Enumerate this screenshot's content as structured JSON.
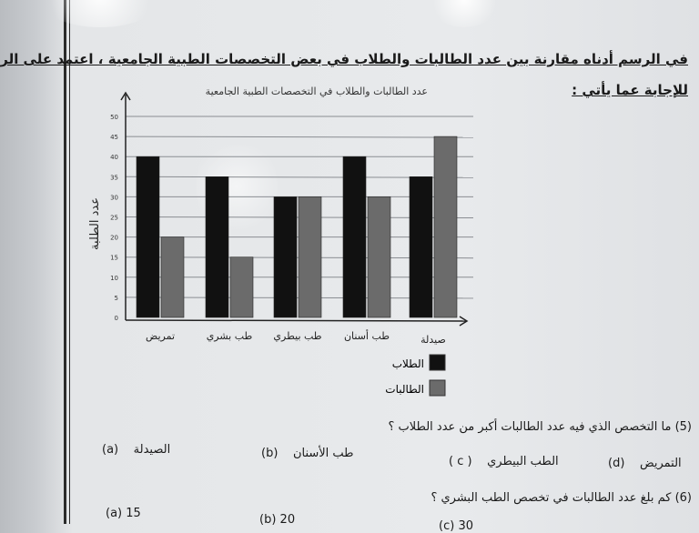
{
  "instructions": {
    "line1": "في الرسم أدناه مقارنة بين عدد  الطالبات والطلاب  في بعض التخصصات الطبية الجامعية ، اعتمد على الرسم",
    "line2": "للإجابة عما يأتي :"
  },
  "chart_data": {
    "type": "bar",
    "title": "عدد الطالبات والطلاب في التخصصات الطبية الجامعية",
    "xlabel": "",
    "ylabel": "عدد الطلبة",
    "ylim": [
      0,
      50
    ],
    "yticks": [
      "0",
      "5",
      "10",
      "15",
      "20",
      "25",
      "30",
      "35",
      "40",
      "45",
      "50"
    ],
    "grid": true,
    "legend_position": "bottom",
    "categories": [
      "تمريض",
      "طب بشري",
      "طب بيطري",
      "طب أسنان",
      "صيدلة"
    ],
    "series": [
      {
        "name": "الطلاب",
        "color": "#111111",
        "values": [
          40,
          35,
          30,
          40,
          35
        ]
      },
      {
        "name": "الطالبات",
        "color": "#6b6b6b",
        "values": [
          20,
          15,
          30,
          30,
          45
        ]
      }
    ]
  },
  "questions": [
    {
      "text": "(5) ما التخصص الذي فيه عدد الطالبات أكبر من عدد الطلاب ؟",
      "options": [
        {
          "label": "(a)",
          "text": "الصيدلة"
        },
        {
          "label": "(b)",
          "text": "طب الأسنان"
        },
        {
          "label": "( c )",
          "text": "الطب البيطري"
        },
        {
          "label": "(d)",
          "text": "التمريض"
        }
      ]
    },
    {
      "text": "(6)  كم بلغ عدد الطالبات في تخصص الطب البشري ؟",
      "options": [
        {
          "label": "(a)",
          "text": "15"
        },
        {
          "label": "(b)",
          "text": "20"
        },
        {
          "label": "(c)",
          "text": "30"
        }
      ]
    }
  ]
}
